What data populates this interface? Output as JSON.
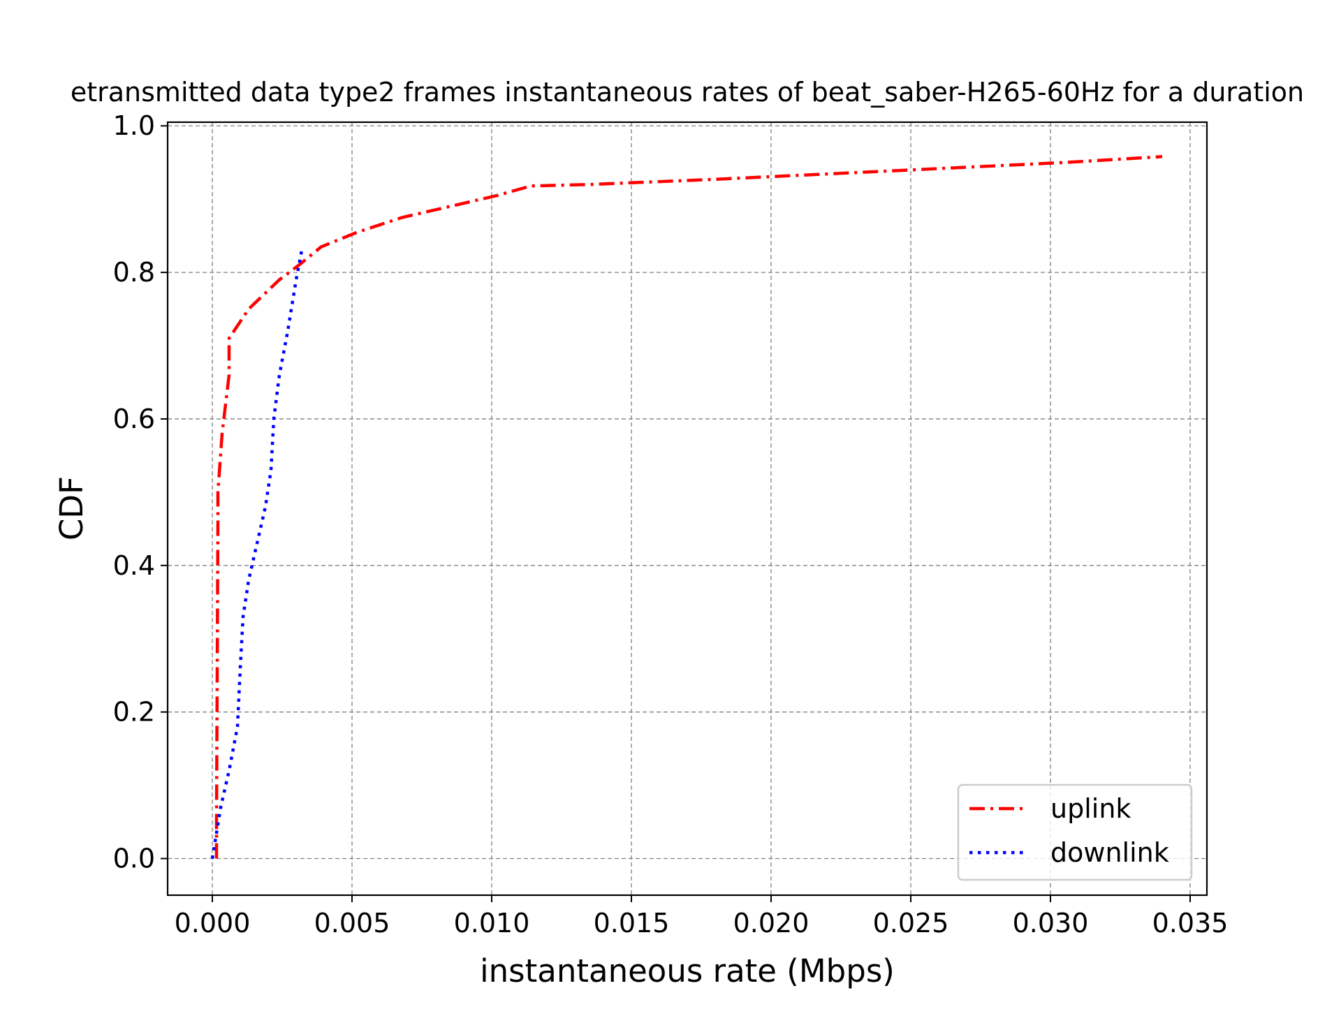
{
  "chart_data": {
    "type": "line",
    "title": "etransmitted data type2 frames instantaneous rates of beat_saber-H265-60Hz for a duration",
    "xlabel": "instantaneous rate (Mbps)",
    "ylabel": "CDF",
    "xlim": [
      -0.0016,
      0.0356
    ],
    "ylim": [
      -0.05,
      1.005
    ],
    "x_ticks": [
      0.0,
      0.005,
      0.01,
      0.015,
      0.02,
      0.025,
      0.03,
      0.035
    ],
    "x_tick_labels": [
      "0.000",
      "0.005",
      "0.010",
      "0.015",
      "0.020",
      "0.025",
      "0.030",
      "0.035"
    ],
    "y_ticks": [
      0.0,
      0.2,
      0.4,
      0.6,
      0.8,
      1.0
    ],
    "y_tick_labels": [
      "0.0",
      "0.2",
      "0.4",
      "0.6",
      "0.8",
      "1.0"
    ],
    "grid": true,
    "legend_position": "lower-right",
    "series": [
      {
        "name": "uplink",
        "color": "#ff0000",
        "linestyle": "dashdot",
        "x": [
          0.00015,
          0.00015,
          0.0002,
          0.0002,
          0.00035,
          0.0006,
          0.0006,
          0.0013,
          0.0024,
          0.0031,
          0.0039,
          0.0052,
          0.0068,
          0.0085,
          0.0102,
          0.0114,
          0.0135,
          0.018,
          0.024,
          0.0305,
          0.034
        ],
        "y": [
          0.0,
          0.05,
          0.46,
          0.5,
          0.58,
          0.66,
          0.71,
          0.75,
          0.79,
          0.81,
          0.835,
          0.855,
          0.875,
          0.89,
          0.905,
          0.918,
          0.92,
          0.927,
          0.938,
          0.95,
          0.958
        ]
      },
      {
        "name": "downlink",
        "color": "#0000ff",
        "linestyle": "dotted",
        "x": [
          0.0,
          0.0003,
          0.0006,
          0.0009,
          0.001,
          0.0011,
          0.0013,
          0.0016,
          0.0019,
          0.0021,
          0.0022,
          0.0024,
          0.0027,
          0.003,
          0.0032
        ],
        "y": [
          0.0,
          0.07,
          0.12,
          0.18,
          0.26,
          0.33,
          0.38,
          0.43,
          0.48,
          0.53,
          0.6,
          0.66,
          0.72,
          0.79,
          0.83
        ]
      }
    ]
  }
}
